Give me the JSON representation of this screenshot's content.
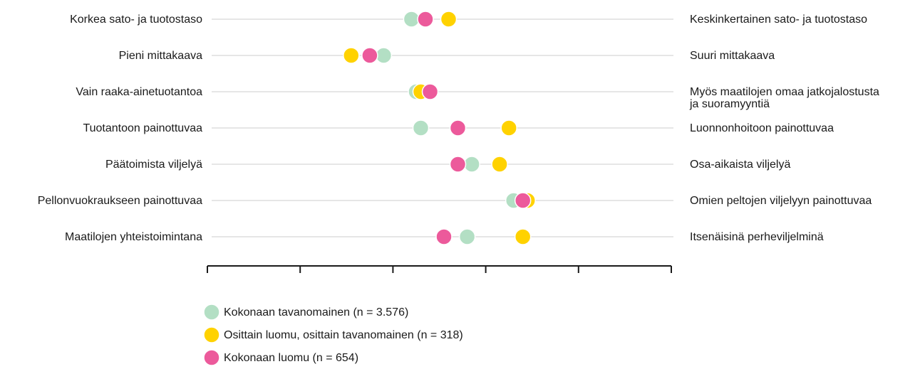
{
  "chart_data": {
    "type": "scatter",
    "title": "",
    "xlim": [
      0,
      10
    ],
    "xlabel": "",
    "ylabel": "",
    "grid": false,
    "legend_position": "bottom",
    "x_tick_count": 6,
    "rows": [
      {
        "left": "Korkea sato- ja tuotostaso",
        "right": [
          "Keskinkertainen sato- ja tuotostaso"
        ]
      },
      {
        "left": "Pieni mittakaava",
        "right": [
          "Suuri mittakaava"
        ]
      },
      {
        "left": "Vain raaka-ainetuotantoa",
        "right": [
          "Myös maatilojen omaa jatkojalostusta",
          "ja suoramyyntiä"
        ]
      },
      {
        "left": "Tuotantoon painottuvaa",
        "right": [
          "Luonnonhoitoon painottuvaa"
        ]
      },
      {
        "left": "Päätoimista viljelyä",
        "right": [
          "Osa-aikaista viljelyä"
        ]
      },
      {
        "left": "Pellonvuokraukseen painottuvaa",
        "right": [
          "Omien peltojen viljelyyn painottuvaa"
        ]
      },
      {
        "left": "Maatilojen yhteistoimintana",
        "right": [
          "Itsenäisinä perheviljelminä"
        ]
      }
    ],
    "series": [
      {
        "name": "Kokonaan tavanomainen (n = 3.576)",
        "color": "#b3dfc4",
        "values": [
          4.4,
          3.8,
          4.5,
          4.6,
          5.7,
          6.6,
          5.6
        ]
      },
      {
        "name": "Osittain luomu, osittain tavanomainen (n = 318)",
        "color": "#ffd200",
        "values": [
          5.2,
          3.1,
          4.6,
          6.5,
          6.3,
          6.9,
          6.8
        ]
      },
      {
        "name": "Kokonaan luomu (n = 654)",
        "color": "#ec5a9b",
        "values": [
          4.7,
          3.5,
          4.8,
          5.4,
          5.4,
          6.8,
          5.1
        ]
      }
    ]
  }
}
